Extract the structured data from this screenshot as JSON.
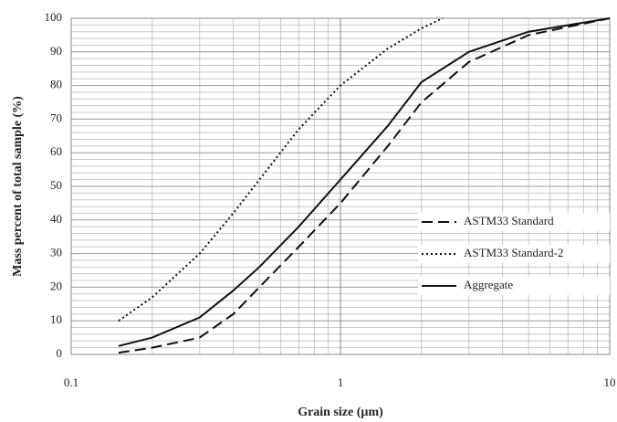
{
  "chart_data": {
    "type": "line",
    "x_label": "Grain size (µm)",
    "y_label": "Mass percent of total sample (%)",
    "xscale": "log",
    "xlim": [
      0.1,
      10
    ],
    "xticks": [
      0.1,
      1,
      10
    ],
    "ylim": [
      0,
      100
    ],
    "yticks": [
      0,
      10,
      20,
      30,
      40,
      50,
      60,
      70,
      80,
      90,
      100
    ],
    "grid": true,
    "legend": "right",
    "series": [
      {
        "name": "ASTM33 Standard",
        "color": "#111111",
        "dash": "dashed",
        "x": [
          0.15,
          0.2,
          0.3,
          0.4,
          0.5,
          0.7,
          1,
          1.5,
          2,
          3,
          5,
          10
        ],
        "values": [
          0.5,
          2,
          5,
          12,
          20,
          32,
          45,
          62,
          75,
          87,
          95,
          100
        ]
      },
      {
        "name": "ASTM33 Standard-2",
        "color": "#111111",
        "dash": "dotted",
        "x": [
          0.15,
          0.2,
          0.3,
          0.4,
          0.5,
          0.7,
          1,
          1.5,
          2,
          2.4
        ],
        "values": [
          10,
          17,
          30,
          42,
          52,
          67,
          80,
          91,
          97,
          100
        ]
      },
      {
        "name": "Aggregate",
        "color": "#111111",
        "dash": "solid",
        "x": [
          0.15,
          0.2,
          0.3,
          0.4,
          0.5,
          0.7,
          1,
          1.5,
          2,
          3,
          5,
          10
        ],
        "values": [
          2.5,
          5,
          11,
          19,
          26,
          38,
          52,
          68,
          81,
          90,
          96,
          100
        ]
      }
    ]
  }
}
